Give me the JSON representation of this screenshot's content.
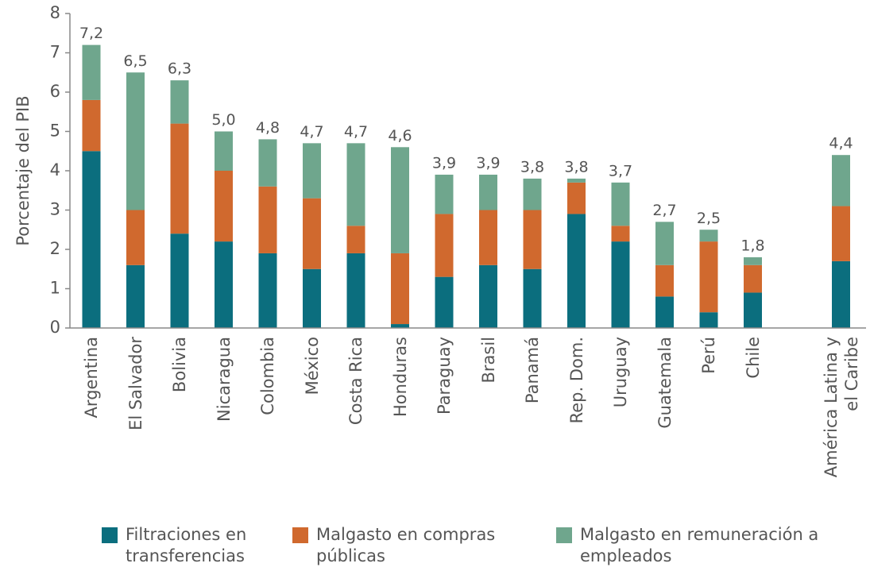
{
  "chart_data": {
    "type": "stacked_bar",
    "y_label": "Porcentaje del PIB",
    "categories": [
      "Argentina",
      "El Salvador",
      "Bolivia",
      "Nicaragua",
      "Colombia",
      "México",
      "Costa Rica",
      "Honduras",
      "Paraguay",
      "Brasil",
      "Panamá",
      "Rep. Dom.",
      "Uruguay",
      "Guatemala",
      "Perú",
      "Chile",
      "América Latina y el Caribe"
    ],
    "series": [
      {
        "name": "Filtraciones en transferencias",
        "color": "#0b6e7e",
        "values": [
          4.5,
          1.6,
          2.4,
          2.2,
          1.9,
          1.5,
          1.9,
          0.1,
          1.3,
          1.6,
          1.5,
          2.9,
          2.2,
          0.8,
          0.4,
          0.9,
          1.7
        ]
      },
      {
        "name": "Malgasto en compras públicas",
        "color": "#d0692e",
        "values": [
          1.3,
          1.4,
          2.8,
          1.8,
          1.7,
          1.8,
          0.7,
          1.8,
          1.6,
          1.4,
          1.5,
          0.8,
          0.4,
          0.8,
          1.8,
          0.7,
          1.4
        ]
      },
      {
        "name": "Malgasto en remuneración a empleados",
        "color": "#6fa68d",
        "values": [
          1.4,
          3.5,
          1.1,
          1.0,
          1.2,
          1.4,
          2.1,
          2.7,
          1.0,
          0.9,
          0.8,
          0.1,
          1.1,
          1.1,
          0.3,
          0.2,
          1.3
        ]
      }
    ],
    "totals": [
      7.2,
      6.5,
      6.3,
      5.0,
      4.8,
      4.7,
      4.7,
      4.6,
      3.9,
      3.9,
      3.8,
      3.8,
      3.7,
      2.7,
      2.5,
      1.8,
      4.4
    ],
    "total_labels": [
      "7,2",
      "6,5",
      "6,3",
      "5,0",
      "4,8",
      "4,7",
      "4,7",
      "4,6",
      "3,9",
      "3,9",
      "3,8",
      "3,8",
      "3,7",
      "2,7",
      "2,5",
      "1,8",
      "4,4"
    ],
    "ylim": [
      0,
      8
    ],
    "yticks": [
      0,
      1,
      2,
      3,
      4,
      5,
      6,
      7,
      8
    ],
    "legend": "bottom"
  }
}
